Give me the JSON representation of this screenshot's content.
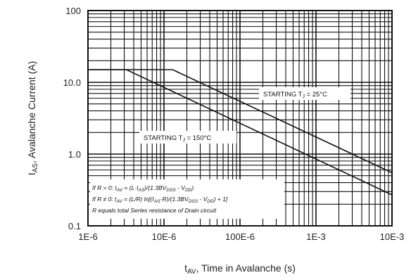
{
  "chart_data": {
    "type": "line",
    "x_scale": "log",
    "y_scale": "log",
    "xlim": [
      1e-06,
      0.01
    ],
    "ylim": [
      0.1,
      100
    ],
    "grid": true,
    "x_tick_labels": [
      "1E-6",
      "10E-6",
      "100E-6",
      "1E-3",
      "10E-3"
    ],
    "y_tick_labels": [
      "0.1",
      "1.0",
      "10.0",
      "100"
    ],
    "xlabel": {
      "main": "t",
      "sub": "AV",
      "rest": ", Time in Avalanche (s)"
    },
    "ylabel": {
      "main": "I",
      "sub": "AS",
      "rest": ", Avalanche Current (A)"
    },
    "series": [
      {
        "name": "STARTING TJ = 25°C",
        "x": [
          1e-06,
          1.3e-05,
          0.01
        ],
        "y": [
          15,
          15,
          0.55
        ]
      },
      {
        "name": "STARTING TJ = 150°C",
        "x": [
          1e-06,
          3.2e-06,
          0.01
        ],
        "y": [
          15,
          15,
          0.27
        ]
      }
    ],
    "annotations": {
      "t25": {
        "pre": "STARTING T",
        "sub": "J",
        "post": " = 25°C"
      },
      "t150": {
        "pre": "STARTING T",
        "sub": "J",
        "post": " = 150°C"
      },
      "formula1": [
        {
          "t": "If R = 0: t"
        },
        {
          "t": "AV",
          "s": true
        },
        {
          "t": " = (L·I"
        },
        {
          "t": "AS",
          "s": true
        },
        {
          "t": ")/(1.3BV"
        },
        {
          "t": "DSS",
          "s": true
        },
        {
          "t": " - V"
        },
        {
          "t": "DD",
          "s": true
        },
        {
          "t": ")"
        }
      ],
      "formula2": [
        {
          "t": "If R ≠ 0: t"
        },
        {
          "t": "AV",
          "s": true
        },
        {
          "t": " = (L/R) ln[(I"
        },
        {
          "t": "AS",
          "s": true
        },
        {
          "t": "·R)/(1.3BV"
        },
        {
          "t": "DSS",
          "s": true
        },
        {
          "t": " - V"
        },
        {
          "t": "DD",
          "s": true
        },
        {
          "t": ") + 1]"
        }
      ],
      "formula3": [
        {
          "t": "R equals total Series resistance of Drain circuit"
        }
      ]
    }
  }
}
